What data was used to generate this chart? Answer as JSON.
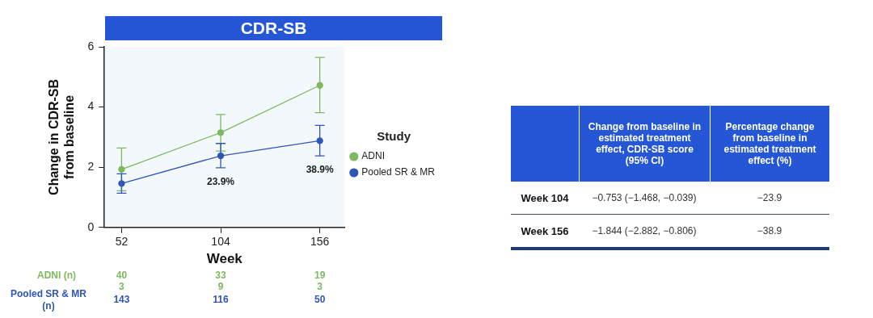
{
  "chart_data": [
    {
      "type": "line",
      "title": "CDR-SB",
      "xlabel": "Week",
      "ylabel": "Change in CDR-SB from baseline",
      "legend_title": "Study",
      "x": [
        52,
        104,
        156
      ],
      "xlim": [
        43,
        169
      ],
      "xticks": [
        52,
        104,
        156
      ],
      "ylim": [
        0,
        6
      ],
      "yticks": [
        0,
        2,
        4,
        6
      ],
      "grid": false,
      "legend": "right",
      "marker": "circle",
      "line_style": "solid",
      "series": [
        {
          "name": "ADNI",
          "color": "#7cb95f",
          "values": [
            1.93,
            3.15,
            4.72
          ],
          "errors": [
            [
              1.22,
              2.64
            ],
            [
              2.54,
              3.75
            ],
            [
              3.81,
              5.65
            ]
          ]
        },
        {
          "name": "Pooled SR & MR",
          "color": "#2f55b8",
          "values": [
            1.46,
            2.38,
            2.88
          ],
          "errors": [
            [
              1.14,
              1.78
            ],
            [
              1.98,
              2.79
            ],
            [
              2.38,
              3.39
            ]
          ]
        }
      ],
      "annotations": [
        "23.9%",
        "38.9%",
        "ADNI (n)",
        "40",
        "33",
        "19",
        "3",
        "9",
        "3",
        "Pooled SR & MR (n)",
        "143",
        "116",
        "50"
      ]
    },
    {
      "type": "other",
      "annotations": [
        "Change from baseline in estimated treatment effect, CDR-SB score (95% CI)",
        "Percentage change from baseline in estimated treatment effect (%)",
        "Week 104",
        "−0.753 (−1.468, −0.039)",
        "−23.9",
        "Week 156",
        "−1.844 (−2.882, −0.806)",
        "−38.9"
      ]
    }
  ]
}
